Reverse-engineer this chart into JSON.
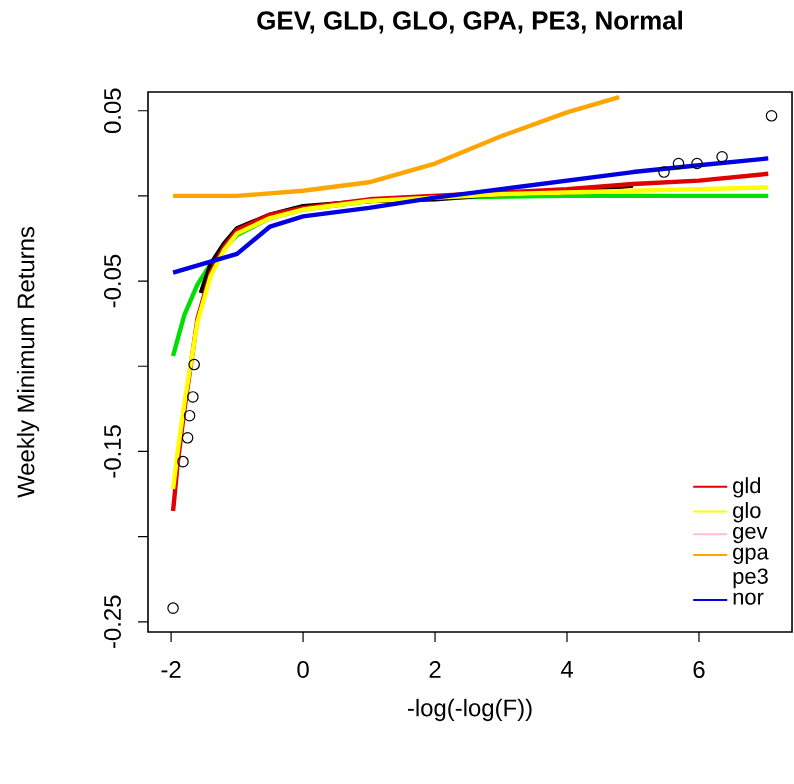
{
  "chart_data": {
    "type": "line",
    "title": "GEV, GLD, GLO, GPA, PE3, Normal",
    "xlabel": "-log(-log(F))",
    "ylabel": "Weekly Minimum Returns",
    "xlim": [
      -2.35,
      7.41
    ],
    "ylim": [
      -0.256,
      0.061
    ],
    "xticks": [
      -2,
      0,
      2,
      4,
      6
    ],
    "yticks": [
      {
        "value": -0.25,
        "label": "-0.25"
      },
      {
        "value": -0.2,
        "label": null
      },
      {
        "value": -0.15,
        "label": "-0.15"
      },
      {
        "value": -0.1,
        "label": null
      },
      {
        "value": -0.05,
        "label": "-0.05"
      },
      {
        "value": 0,
        "label": null
      },
      {
        "value": 0.05,
        "label": "0.05"
      }
    ],
    "legend": "bottom right",
    "line_style": "solid",
    "series": [
      {
        "color": "#00e000",
        "x": [
          -1.97,
          -1.9,
          -1.8,
          -1.6,
          -1.4,
          -1.2,
          -1,
          -0.5,
          0,
          1,
          2,
          4,
          7.05
        ],
        "values": [
          -0.094,
          -0.084,
          -0.07,
          -0.052,
          -0.04,
          -0.031,
          -0.023,
          -0.013,
          -0.008,
          -0.003,
          -0.001,
          0,
          0
        ]
      },
      {
        "color": "#000000",
        "x": [
          -1.55,
          -1.4,
          -1.2,
          -1,
          -0.5,
          0,
          1,
          2,
          3,
          4,
          5
        ],
        "values": [
          -0.057,
          -0.04,
          -0.028,
          -0.019,
          -0.011,
          -0.006,
          -0.003,
          -0.002,
          0.001,
          0.002,
          0.006
        ]
      },
      {
        "name": "gld",
        "color": "#e00000",
        "x": [
          -1.97,
          -1.9,
          -1.8,
          -1.6,
          -1.4,
          -1.2,
          -1,
          -0.5,
          0,
          1,
          2,
          3,
          4,
          5,
          6,
          7.05
        ],
        "values": [
          -0.185,
          -0.157,
          -0.126,
          -0.072,
          -0.045,
          -0.03,
          -0.02,
          -0.011,
          -0.007,
          -0.002,
          0,
          0.002,
          0.004,
          0.007,
          0.009,
          0.013
        ]
      },
      {
        "name": "glo",
        "color": "#ffff00",
        "x": [
          -1.97,
          -1.9,
          -1.8,
          -1.6,
          -1.4,
          -1.2,
          -1,
          -0.5,
          0,
          1,
          2,
          3,
          4,
          5,
          6,
          7.05
        ],
        "values": [
          -0.172,
          -0.15,
          -0.122,
          -0.074,
          -0.047,
          -0.032,
          -0.022,
          -0.013,
          -0.008,
          -0.003,
          -0.001,
          0.001,
          0.002,
          0.003,
          0.004,
          0.005
        ]
      },
      {
        "name": "gev",
        "color": "#ffc0cb"
      },
      {
        "name": "gpa",
        "color": "#ffa500",
        "x": [
          -1.97,
          -1,
          0,
          1,
          2,
          3,
          4,
          4.79
        ],
        "values": [
          0,
          0,
          0.003,
          0.008,
          0.019,
          0.035,
          0.049,
          0.058
        ]
      },
      {
        "name": "pe3"
      },
      {
        "name": "nor",
        "color": "#0000e0",
        "x": [
          -1.97,
          -1,
          -0.5,
          0,
          1,
          2,
          3,
          4,
          5,
          6,
          7.05
        ],
        "values": [
          -0.045,
          -0.034,
          -0.018,
          -0.012,
          -0.007,
          -0.001,
          0.004,
          0.009,
          0.014,
          0.018,
          0.022
        ]
      },
      {
        "type": "scatter",
        "marker": "circle",
        "color": "#000000",
        "x": [
          -1.97,
          -1.82,
          -1.75,
          -1.72,
          -1.67,
          -1.65,
          5.47,
          5.69,
          5.97,
          6.35,
          7.1
        ],
        "values": [
          -0.242,
          -0.156,
          -0.142,
          -0.129,
          -0.118,
          -0.099,
          0.014,
          0.019,
          0.019,
          0.023,
          0.047
        ]
      }
    ]
  }
}
